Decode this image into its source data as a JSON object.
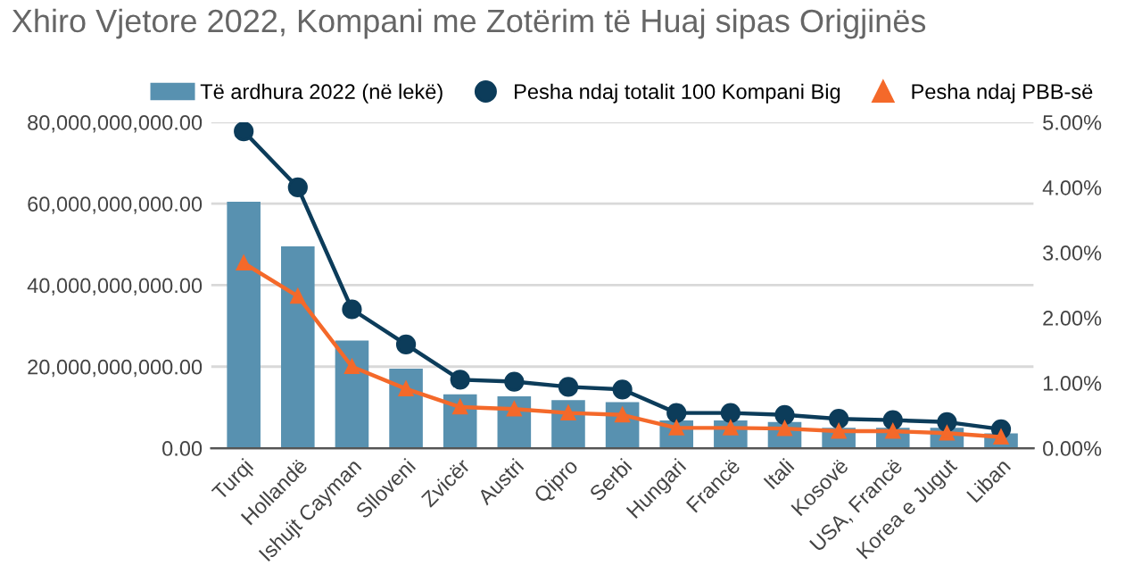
{
  "chart_data": {
    "type": "bar",
    "title": "Xhiro Vjetore 2022, Kompani me Zotërim të Huaj sipas Origjinës",
    "categories": [
      "Turqi",
      "Hollandë",
      "Ishujt Cayman",
      "Slloveni",
      "Zvicër",
      "Austri",
      "Qipro",
      "Serbi",
      "Hungari",
      "Francë",
      "Itali",
      "Kosovë",
      "USA, Francë",
      "Korea e Jugut",
      "Liban"
    ],
    "series": [
      {
        "name": "Të ardhura 2022 (në lekë)",
        "color": "#5891b0",
        "values": [
          60500000000,
          49500000000,
          26400000000,
          19500000000,
          13200000000,
          12700000000,
          11800000000,
          11300000000,
          6800000000,
          6800000000,
          6400000000,
          5000000000,
          5000000000,
          5000000000,
          3600000000
        ]
      },
      {
        "name": "Pesha ndaj totalit 100 Kompani Big",
        "type": "line",
        "axis": "y2",
        "marker": "circle",
        "color": "#0c3c5a",
        "values": [
          4.86,
          4.0,
          2.13,
          1.59,
          1.05,
          1.02,
          0.94,
          0.9,
          0.54,
          0.54,
          0.51,
          0.45,
          0.43,
          0.4,
          0.29
        ]
      },
      {
        "name": "Pesha ndaj PBB-së",
        "type": "line",
        "axis": "y2",
        "marker": "triangle",
        "color": "#f4692a",
        "values": [
          2.84,
          2.33,
          1.25,
          0.91,
          0.63,
          0.6,
          0.54,
          0.51,
          0.31,
          0.31,
          0.3,
          0.26,
          0.26,
          0.23,
          0.17
        ]
      }
    ],
    "ylim": [
      0,
      80000000000
    ],
    "yticks": [
      {
        "value": 0,
        "label": "0.00"
      },
      {
        "value": 20000000000,
        "label": "20,000,000,000.00"
      },
      {
        "value": 40000000000,
        "label": "40,000,000,000.00"
      },
      {
        "value": 60000000000,
        "label": "60,000,000,000.00"
      },
      {
        "value": 80000000000,
        "label": "80,000,000,000.00"
      }
    ],
    "y2lim": [
      0,
      5
    ],
    "y2ticks": [
      {
        "value": 0,
        "label": "0.00%"
      },
      {
        "value": 1,
        "label": "1.00%"
      },
      {
        "value": 2,
        "label": "2.00%"
      },
      {
        "value": 3,
        "label": "3.00%"
      },
      {
        "value": 4,
        "label": "4.00%"
      },
      {
        "value": 5,
        "label": "5.00%"
      }
    ],
    "grid": "y",
    "legend": "top"
  }
}
